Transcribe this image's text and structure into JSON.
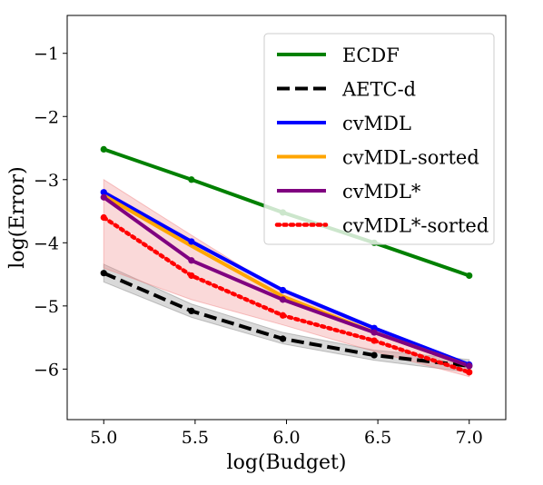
{
  "chart_data": {
    "type": "line",
    "title": "",
    "xlabel": "log(Budget)",
    "ylabel": "log(Error)",
    "xlim": [
      4.8,
      7.2
    ],
    "ylim": [
      -6.8,
      -0.4
    ],
    "x_ticks": [
      5.0,
      5.5,
      6.0,
      6.5,
      7.0
    ],
    "x_tick_labels": [
      "5.0",
      "5.5",
      "6.0",
      "6.5",
      "7.0"
    ],
    "y_ticks": [
      -1,
      -2,
      -3,
      -4,
      -5,
      -6
    ],
    "y_tick_labels": [
      "−1",
      "−2",
      "−3",
      "−4",
      "−5",
      "−6"
    ],
    "grid": false,
    "legend_position": "top-right",
    "x": [
      5.0,
      5.48,
      5.98,
      6.48,
      7.0
    ],
    "series": [
      {
        "name": "ECDF",
        "color": "#008000",
        "style": "solid",
        "markers": true,
        "values": [
          -2.52,
          -3.0,
          -3.52,
          -4.0,
          -4.52
        ]
      },
      {
        "name": "AETC-d",
        "color": "#000000",
        "style": "dashed",
        "markers": true,
        "values": [
          -4.48,
          -5.08,
          -5.52,
          -5.78,
          -5.95
        ],
        "band": {
          "color": "#808080",
          "lower": [
            -4.62,
            -5.18,
            -5.6,
            -5.86,
            -6.05
          ],
          "upper": [
            -4.34,
            -4.97,
            -5.42,
            -5.7,
            -5.85
          ]
        }
      },
      {
        "name": "cvMDL",
        "color": "#0000ff",
        "style": "solid",
        "markers": true,
        "values": [
          -3.2,
          -3.98,
          -4.75,
          -5.35,
          -5.93
        ]
      },
      {
        "name": "cvMDL-sorted",
        "color": "#ffa500",
        "style": "solid",
        "markers": false,
        "values": [
          -3.25,
          -4.05,
          -4.85,
          -5.42,
          -5.95
        ]
      },
      {
        "name": "cvMDL*",
        "color": "#800080",
        "style": "solid",
        "markers": true,
        "values": [
          -3.28,
          -4.28,
          -4.9,
          -5.42,
          -5.95
        ]
      },
      {
        "name": "cvMDL*-sorted",
        "color": "#ff0000",
        "style": "dotted",
        "markers": true,
        "values": [
          -3.6,
          -4.52,
          -5.15,
          -5.55,
          -6.05
        ],
        "band": {
          "color": "#f08080",
          "lower": [
            -4.4,
            -4.9,
            -5.3,
            -5.72,
            -6.12
          ],
          "upper": [
            -3.0,
            -3.88,
            -4.78,
            -5.38,
            -5.92
          ]
        }
      }
    ]
  }
}
